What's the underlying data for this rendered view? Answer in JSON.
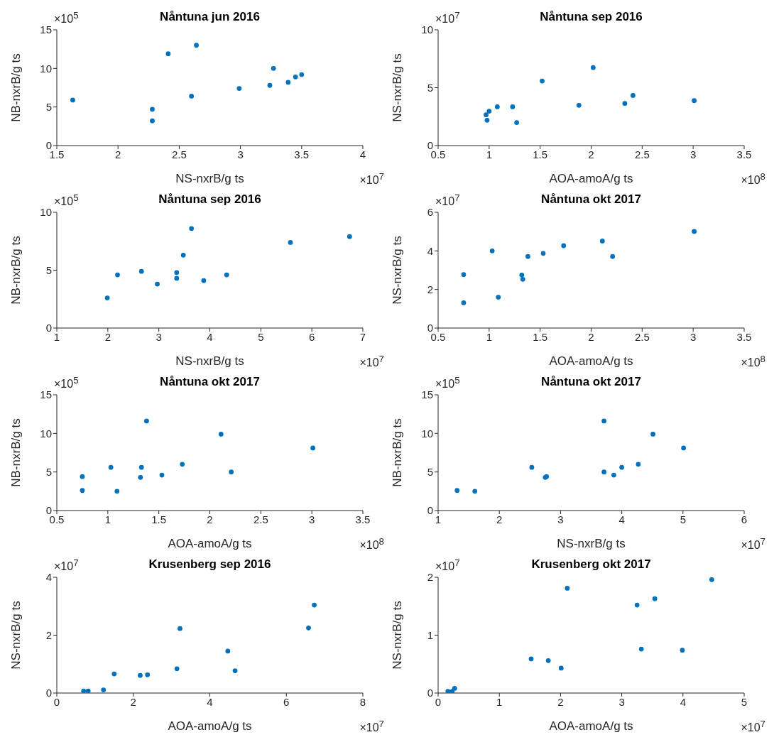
{
  "chart_data": [
    {
      "type": "scatter",
      "title": "Nåntuna jun 2016",
      "xlabel": "NS-nxrB/g ts",
      "ylabel": "NB-nxrB/g ts",
      "color": "#0072bd",
      "marker": "circle",
      "x": [
        1.63,
        2.28,
        2.28,
        2.41,
        2.64,
        2.6,
        2.99,
        3.24,
        3.27,
        3.39,
        3.45,
        3.5
      ],
      "values": [
        5.9,
        4.7,
        3.2,
        11.9,
        13.0,
        6.4,
        7.4,
        7.8,
        10.0,
        8.2,
        8.9,
        9.2
      ],
      "xlim": [
        1.5,
        4
      ],
      "ylim": [
        0,
        15
      ],
      "xticks": [
        1.5,
        2,
        2.5,
        3,
        3.5,
        4
      ],
      "yticks": [
        0,
        5,
        10,
        15
      ],
      "annotations": [
        "×10$^{5}$",
        "×10$^{7}$"
      ]
    },
    {
      "type": "scatter",
      "title": "Nåntuna sep 2016",
      "xlabel": "AOA-amoA/g ts",
      "ylabel": "NS-nxrB/g ts",
      "color": "#0072bd",
      "marker": "circle",
      "x": [
        0.97,
        0.98,
        1.0,
        1.08,
        1.23,
        1.27,
        1.52,
        1.88,
        2.02,
        2.33,
        2.41,
        3.01
      ],
      "values": [
        2.66,
        2.19,
        2.97,
        3.35,
        3.35,
        1.99,
        5.58,
        3.48,
        6.74,
        3.64,
        4.33,
        3.88
      ],
      "xlim": [
        0.5,
        3.5
      ],
      "ylim": [
        0,
        10
      ],
      "xticks": [
        0.5,
        1,
        1.5,
        2,
        2.5,
        3,
        3.5
      ],
      "yticks": [
        0,
        5,
        10
      ],
      "annotations": [
        "×10$^{7}$",
        "×10$^{8}$"
      ]
    },
    {
      "type": "scatter",
      "title": "Nåntuna sep 2016",
      "xlabel": "NS-nxrB/g ts",
      "ylabel": "NB-nxrB/g ts",
      "color": "#0072bd",
      "marker": "circle",
      "x": [
        1.99,
        2.19,
        2.66,
        2.97,
        3.35,
        3.35,
        3.48,
        3.64,
        3.88,
        4.33,
        5.58,
        6.74
      ],
      "values": [
        2.6,
        4.6,
        4.9,
        3.8,
        4.3,
        4.8,
        6.3,
        8.6,
        4.1,
        4.6,
        7.4,
        7.9
      ],
      "xlim": [
        1,
        7
      ],
      "ylim": [
        0,
        10
      ],
      "xticks": [
        1,
        2,
        3,
        4,
        5,
        6,
        7
      ],
      "yticks": [
        0,
        5,
        10
      ],
      "annotations": [
        "×10$^{5}$",
        "×10$^{7}$"
      ]
    },
    {
      "type": "scatter",
      "title": "Nåntuna okt 2017",
      "xlabel": "AOA-amoA/g ts",
      "ylabel": "NS-nxrB/g ts",
      "color": "#0072bd",
      "marker": "circle",
      "x": [
        0.75,
        0.75,
        1.03,
        1.09,
        1.32,
        1.33,
        1.38,
        1.53,
        1.73,
        2.11,
        2.21,
        3.01
      ],
      "values": [
        2.77,
        1.31,
        4.0,
        1.6,
        2.75,
        2.53,
        3.71,
        3.87,
        4.27,
        4.51,
        3.71,
        5.01
      ],
      "xlim": [
        0.5,
        3.5
      ],
      "ylim": [
        0,
        6
      ],
      "xticks": [
        0.5,
        1,
        1.5,
        2,
        2.5,
        3,
        3.5
      ],
      "yticks": [
        0,
        2,
        4,
        6
      ],
      "annotations": [
        "×10$^{7}$",
        "×10$^{8}$"
      ]
    },
    {
      "type": "scatter",
      "title": "Nåntuna okt 2017",
      "xlabel": "AOA-amoA/g ts",
      "ylabel": "NB-nxrB/g ts",
      "color": "#0072bd",
      "marker": "circle",
      "x": [
        0.75,
        0.75,
        1.03,
        1.09,
        1.32,
        1.33,
        1.38,
        1.53,
        1.73,
        2.11,
        2.21,
        3.01
      ],
      "values": [
        4.4,
        2.6,
        5.6,
        2.5,
        4.3,
        5.6,
        11.6,
        4.6,
        6.0,
        9.9,
        5.0,
        8.1
      ],
      "xlim": [
        0.5,
        3.5
      ],
      "ylim": [
        0,
        15
      ],
      "xticks": [
        0.5,
        1,
        1.5,
        2,
        2.5,
        3,
        3.5
      ],
      "yticks": [
        0,
        5,
        10,
        15
      ],
      "annotations": [
        "×10$^{5}$",
        "×10$^{8}$"
      ]
    },
    {
      "type": "scatter",
      "title": "Nåntuna okt 2017",
      "xlabel": "NS-nxrB/g ts",
      "ylabel": "NB-nxrB/g ts",
      "color": "#0072bd",
      "marker": "circle",
      "x": [
        2.77,
        1.31,
        4.0,
        1.6,
        2.75,
        2.53,
        3.71,
        3.87,
        4.27,
        4.51,
        3.71,
        5.01
      ],
      "values": [
        4.4,
        2.6,
        5.6,
        2.5,
        4.3,
        5.6,
        11.6,
        4.6,
        6.0,
        9.9,
        5.0,
        8.1
      ],
      "xlim": [
        1,
        6
      ],
      "ylim": [
        0,
        15
      ],
      "xticks": [
        1,
        2,
        3,
        4,
        5,
        6
      ],
      "yticks": [
        0,
        5,
        10,
        15
      ],
      "annotations": [
        "×10$^{5}$",
        "×10$^{7}$"
      ]
    },
    {
      "type": "scatter",
      "title": "Krusenberg sep 2016",
      "xlabel": "AOA-amoA/g ts",
      "ylabel": "NS-nxrB/g ts",
      "color": "#0072bd",
      "marker": "circle",
      "x": [
        0.7,
        0.82,
        1.22,
        1.5,
        2.18,
        2.37,
        3.14,
        3.22,
        4.47,
        4.66,
        6.58,
        6.73
      ],
      "values": [
        0.07,
        0.07,
        0.11,
        0.66,
        0.61,
        0.63,
        0.84,
        2.23,
        1.45,
        0.77,
        2.25,
        3.04
      ],
      "xlim": [
        0,
        8
      ],
      "ylim": [
        0,
        4
      ],
      "xticks": [
        0,
        2,
        4,
        6,
        8
      ],
      "yticks": [
        0,
        2,
        4
      ],
      "annotations": [
        "×10$^{7}$",
        "×10$^{7}$"
      ]
    },
    {
      "type": "scatter",
      "title": "Krusenberg okt 2017",
      "xlabel": "AOA-amoA/g ts",
      "ylabel": "NS-nxrB/g ts",
      "color": "#0072bd",
      "marker": "circle",
      "x": [
        0.16,
        0.23,
        0.27,
        1.52,
        1.8,
        2.01,
        2.11,
        3.25,
        3.32,
        3.54,
        3.99,
        4.47
      ],
      "values": [
        0.03,
        0.03,
        0.08,
        0.59,
        0.56,
        0.43,
        1.81,
        1.52,
        0.76,
        1.63,
        0.74,
        1.96
      ],
      "xlim": [
        0,
        5
      ],
      "ylim": [
        0,
        2
      ],
      "xticks": [
        0,
        1,
        2,
        3,
        4,
        5
      ],
      "yticks": [
        0,
        1,
        2
      ],
      "annotations": [
        "×10$^{7}$",
        "×10$^{7}$"
      ]
    }
  ]
}
